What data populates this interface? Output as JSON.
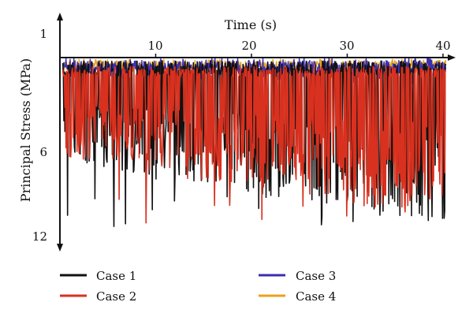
{
  "chart_data": {
    "type": "line",
    "title": "",
    "xlabel": "Time (s)",
    "ylabel": "Principal Stress (MPa)",
    "xlim": [
      0,
      40.5
    ],
    "ylim": [
      1,
      12
    ],
    "y_inverted": true,
    "x_ticks": [
      "10",
      "20",
      "30",
      "40"
    ],
    "y_ticks": [
      "1",
      "6",
      "12"
    ],
    "legend_position": "bottom",
    "series": [
      {
        "name": "Case 1",
        "color": "#111111",
        "base": 3.2,
        "spread_low": 0.7,
        "spread_high": 4.5,
        "peak": 11.5
      },
      {
        "name": "Case 2",
        "color": "#d9311f",
        "base": 3.4,
        "spread_low": 0.6,
        "spread_high": 4.2,
        "peak": 11.5
      },
      {
        "name": "Case 3",
        "color": "#3a2fb0",
        "base": 2.9,
        "spread_low": 0.4,
        "spread_high": 0.6,
        "peak": 3.8
      },
      {
        "name": "Case 4",
        "color": "#e9a21f",
        "base": 2.8,
        "spread_low": 0.3,
        "spread_high": 0.4,
        "peak": 3.5
      }
    ]
  }
}
